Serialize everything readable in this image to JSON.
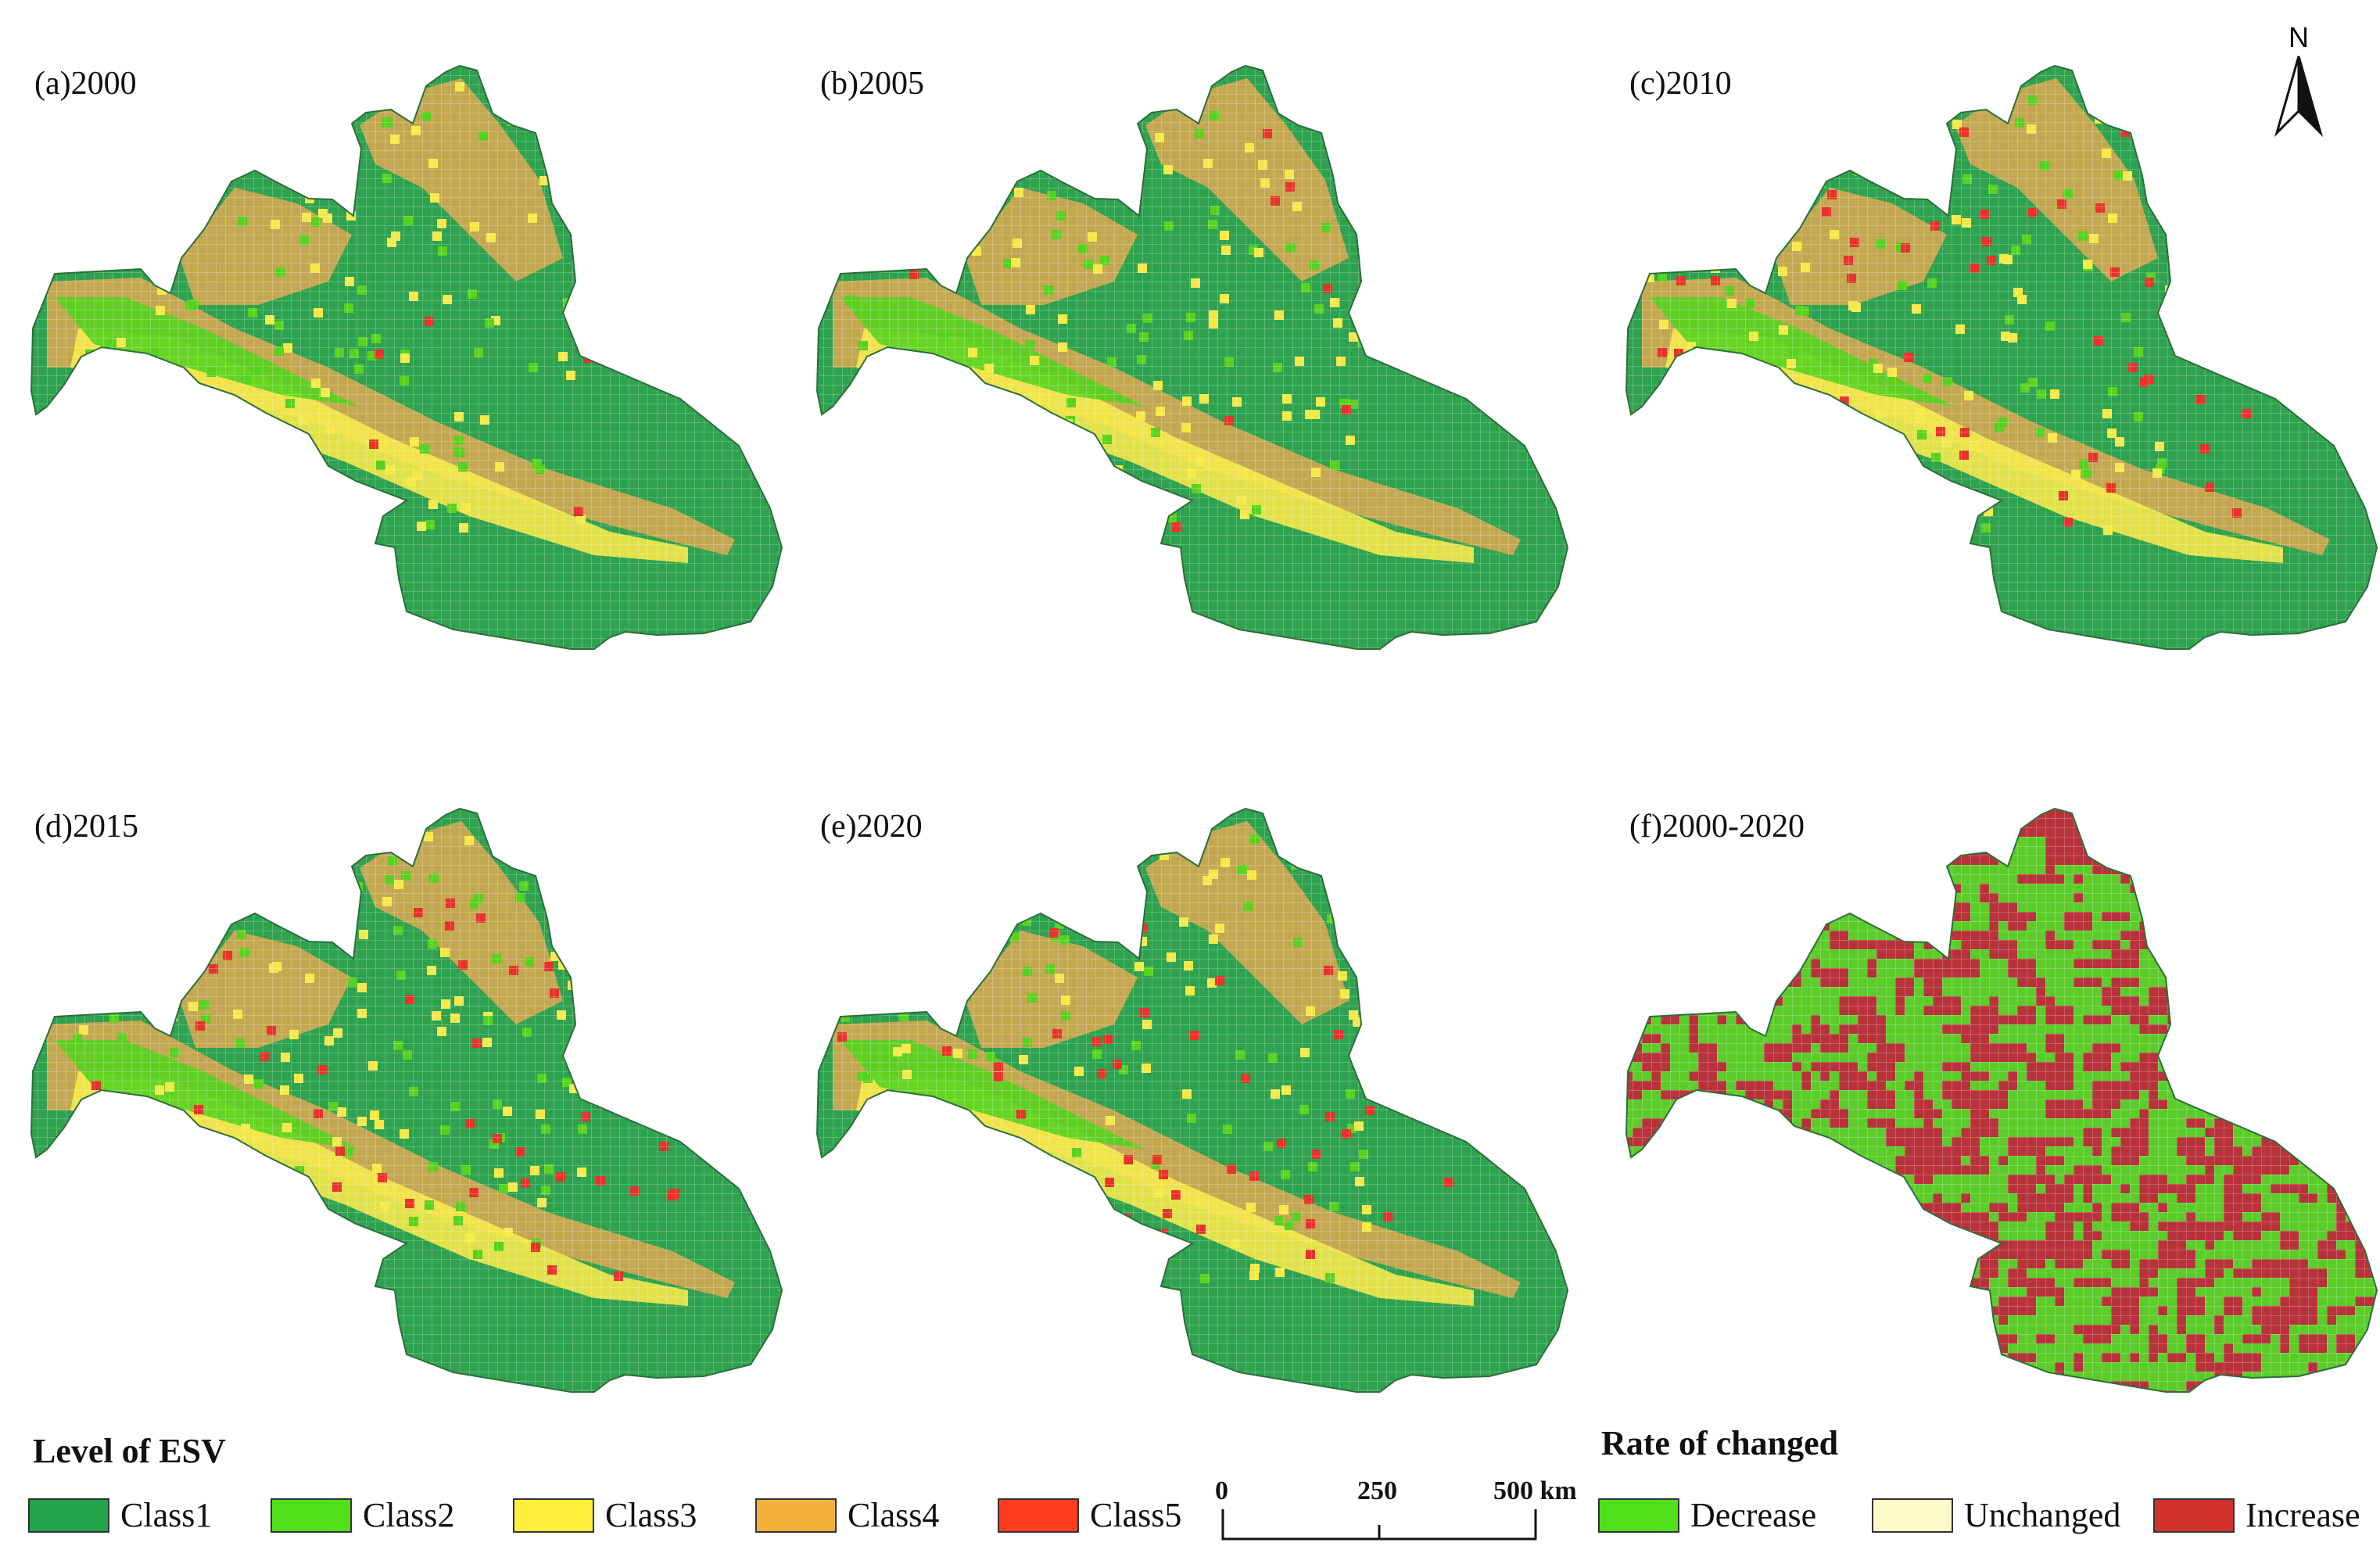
{
  "panels": [
    {
      "label": "(a)2000",
      "kind": "esv",
      "seed": 11
    },
    {
      "label": "(b)2005",
      "kind": "esv",
      "seed": 23
    },
    {
      "label": "(c)2010",
      "kind": "esv",
      "seed": 37
    },
    {
      "label": "(d)2015",
      "kind": "esv",
      "seed": 41
    },
    {
      "label": "(e)2020",
      "kind": "esv",
      "seed": 53
    },
    {
      "label": "(f)2000-2020",
      "kind": "change",
      "seed": 67
    }
  ],
  "north_arrow": {
    "label": "N"
  },
  "legend_esv": {
    "title": "Level of ESV",
    "items": [
      {
        "label": "Class1",
        "color": "#22a24b"
      },
      {
        "label": "Class2",
        "color": "#4fe01a"
      },
      {
        "label": "Class3",
        "color": "#ffef3a"
      },
      {
        "label": "Class4",
        "color": "#f2b13a"
      },
      {
        "label": "Class5",
        "color": "#ff3b1f"
      }
    ]
  },
  "legend_change": {
    "title": "Rate of changed",
    "items": [
      {
        "label": "Decrease",
        "color": "#4fe01a"
      },
      {
        "label": "Unchanged",
        "color": "#fffbc8"
      },
      {
        "label": "Increase",
        "color": "#d0322d"
      }
    ]
  },
  "scale_bar": {
    "ticks": [
      "0",
      "250",
      "500 km"
    ]
  },
  "map_colors": {
    "class1": "#2ea24f",
    "class2": "#56d21f",
    "class3": "#f5e94a",
    "class4": "#d4a851",
    "class5": "#e8322a",
    "change_decrease": "#5ccc2a",
    "change_increase": "#b8323a"
  }
}
